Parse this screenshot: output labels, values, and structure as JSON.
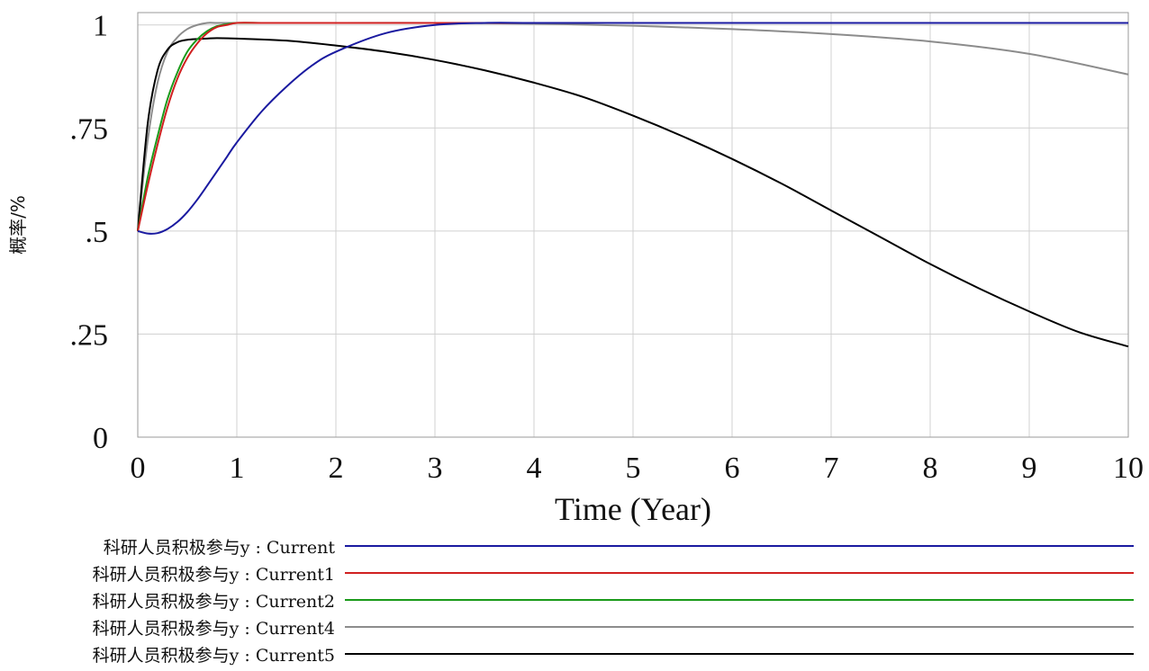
{
  "chart_data": {
    "type": "line",
    "xlabel": "Time (Year)",
    "ylabel": "概率/%",
    "xlim": [
      0,
      10
    ],
    "ylim": [
      0,
      1.0
    ],
    "x_ticks": [
      "0",
      "1",
      "2",
      "3",
      "4",
      "5",
      "6",
      "7",
      "8",
      "9",
      "10"
    ],
    "y_ticks": [
      {
        "value": 0,
        "label": "0"
      },
      {
        "value": 0.25,
        "label": ".25"
      },
      {
        "value": 0.5,
        "label": ".5"
      },
      {
        "value": 0.75,
        "label": ".75"
      },
      {
        "value": 1,
        "label": "1"
      }
    ],
    "grid": true,
    "legend_position": "bottom",
    "series": [
      {
        "name": "科研人员积极参与y : Current",
        "color": "#1a1aa0",
        "x": [
          0,
          0.1,
          0.2,
          0.3,
          0.4,
          0.5,
          0.6,
          0.7,
          0.8,
          0.9,
          1.0,
          1.25,
          1.5,
          1.75,
          2.0,
          2.5,
          3.0,
          3.5,
          4.0,
          5.0,
          6.0,
          7.0,
          8.0,
          9.0,
          10.0
        ],
        "y": [
          0.5,
          0.494,
          0.495,
          0.505,
          0.522,
          0.546,
          0.576,
          0.61,
          0.645,
          0.68,
          0.715,
          0.79,
          0.85,
          0.9,
          0.935,
          0.98,
          1.0,
          1.005,
          1.005,
          1.005,
          1.005,
          1.005,
          1.005,
          1.005,
          1.005
        ]
      },
      {
        "name": "科研人员积极参与y : Current1",
        "color": "#d02020",
        "x": [
          0,
          0.1,
          0.2,
          0.3,
          0.4,
          0.5,
          0.6,
          0.7,
          0.8,
          0.9,
          1.0,
          1.25,
          1.5,
          2.0,
          3.0,
          4.0,
          5.0,
          6.0,
          7.0,
          8.0,
          9.0,
          10.0
        ],
        "y": [
          0.5,
          0.61,
          0.71,
          0.8,
          0.87,
          0.92,
          0.955,
          0.98,
          0.995,
          1.0,
          1.005,
          1.005,
          1.005,
          1.005,
          1.005,
          1.005,
          1.005,
          1.005,
          1.005,
          1.005,
          1.005,
          1.005
        ]
      },
      {
        "name": "科研人员积极参与y : Current2",
        "color": "#1a9a1a",
        "x": [
          0,
          0.1,
          0.2,
          0.3,
          0.4,
          0.5,
          0.6,
          0.7,
          0.8,
          0.9,
          1.0,
          1.25,
          1.5,
          2.0,
          3.0,
          4.0,
          5.0,
          6.0,
          7.0,
          8.0,
          9.0,
          10.0
        ],
        "y": [
          0.5,
          0.63,
          0.73,
          0.82,
          0.885,
          0.935,
          0.965,
          0.985,
          0.997,
          1.002,
          1.005,
          1.005,
          1.005,
          1.005,
          1.005,
          1.005,
          1.005,
          1.005,
          1.005,
          1.005,
          1.005,
          1.005
        ]
      },
      {
        "name": "科研人员积极参与y : Current4",
        "color": "#8c8c8c",
        "x": [
          0,
          0.1,
          0.2,
          0.3,
          0.4,
          0.5,
          0.6,
          0.7,
          0.8,
          1.0,
          1.5,
          2.0,
          3.0,
          4.0,
          5.0,
          6.0,
          7.0,
          8.0,
          9.0,
          10.0
        ],
        "y": [
          0.5,
          0.72,
          0.86,
          0.935,
          0.97,
          0.99,
          1.0,
          1.005,
          1.005,
          1.005,
          1.005,
          1.005,
          1.005,
          1.003,
          0.998,
          0.99,
          0.978,
          0.96,
          0.93,
          0.88
        ]
      },
      {
        "name": "科研人员积极参与y : Current5",
        "color": "#000000",
        "x": [
          0,
          0.1,
          0.2,
          0.3,
          0.4,
          0.5,
          0.6,
          0.7,
          0.8,
          1.0,
          1.5,
          2.0,
          2.5,
          3.0,
          3.5,
          4.0,
          4.5,
          5.0,
          5.5,
          6.0,
          6.5,
          7.0,
          7.5,
          8.0,
          8.5,
          9.0,
          9.5,
          10.0
        ],
        "y": [
          0.5,
          0.76,
          0.89,
          0.94,
          0.958,
          0.964,
          0.966,
          0.967,
          0.968,
          0.967,
          0.962,
          0.95,
          0.935,
          0.915,
          0.89,
          0.86,
          0.825,
          0.78,
          0.73,
          0.675,
          0.615,
          0.55,
          0.485,
          0.42,
          0.36,
          0.305,
          0.255,
          0.22
        ]
      }
    ]
  }
}
